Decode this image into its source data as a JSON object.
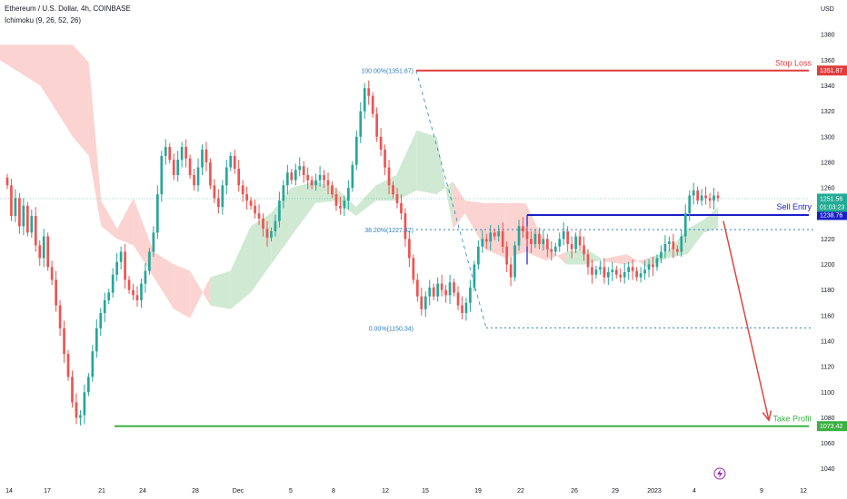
{
  "header": {
    "title": "Ethereum / U.S. Dollar, 4h, COINBASE",
    "indicator": "Ichimoku (9, 26, 52, 26)"
  },
  "colors": {
    "stop_loss": "#e03e3e",
    "sell_entry": "#1a1fc8",
    "take_profit": "#3cb043",
    "arrow": "#e0463f",
    "fib": "#2f7fc1",
    "candle_up": "#26a69a",
    "candle_down": "#ef5350",
    "cloud_bull": "#cfe9d3",
    "cloud_bear": "#fbd3d1",
    "price_tag": "#22ab94"
  },
  "chart_data": {
    "type": "candlestick",
    "symbol": "Ethereum / U.S. Dollar",
    "timeframe": "4h",
    "exchange": "COINBASE",
    "currency": "USD",
    "ylim": [
      1032,
      1400
    ],
    "y_ticks": [
      1040,
      1060,
      1080,
      1100,
      1120,
      1140,
      1160,
      1180,
      1200,
      1220,
      1240,
      1260,
      1280,
      1300,
      1320,
      1340,
      1360,
      1380
    ],
    "x_ticks": [
      "14",
      "17",
      "21",
      "24",
      "28",
      "Dec",
      "5",
      "8",
      "12",
      "15",
      "19",
      "22",
      "26",
      "29",
      "2023",
      "4",
      "9",
      "12"
    ],
    "levels": {
      "stop_loss": {
        "label": "Stop Loss",
        "price": 1351.87,
        "tag": "1351.87"
      },
      "sell_entry": {
        "label": "Sell Entry",
        "price": 1238.76,
        "tag": "1238.76"
      },
      "take_profit": {
        "label": "Take Profit",
        "price": 1073.42,
        "tag": "1073.42"
      }
    },
    "fibonacci": [
      {
        "label": "100.00%(1351.87)",
        "price": 1351.87
      },
      {
        "label": "38.20%(1227.32)",
        "price": 1227.32
      },
      {
        "label": "0.00%(1150.34)",
        "price": 1150.34
      }
    ],
    "current_price": {
      "price": 1251.56,
      "label": "1251.56",
      "countdown": "01:03:23"
    },
    "closes": [
      1262,
      1238,
      1252,
      1230,
      1246,
      1225,
      1238,
      1215,
      1205,
      1222,
      1198,
      1188,
      1168,
      1150,
      1130,
      1112,
      1092,
      1080,
      1082,
      1100,
      1112,
      1132,
      1150,
      1162,
      1172,
      1178,
      1192,
      1202,
      1210,
      1188,
      1180,
      1176,
      1172,
      1185,
      1195,
      1210,
      1225,
      1255,
      1285,
      1292,
      1282,
      1270,
      1282,
      1292,
      1283,
      1270,
      1262,
      1276,
      1290,
      1280,
      1262,
      1252,
      1245,
      1262,
      1276,
      1285,
      1275,
      1262,
      1255,
      1250,
      1246,
      1240,
      1236,
      1228,
      1221,
      1226,
      1234,
      1250,
      1262,
      1272,
      1266,
      1274,
      1277,
      1270,
      1266,
      1262,
      1266,
      1270,
      1266,
      1262,
      1255,
      1246,
      1244,
      1250,
      1260,
      1278,
      1300,
      1320,
      1338,
      1332,
      1318,
      1300,
      1290,
      1276,
      1262,
      1255,
      1248,
      1240,
      1220,
      1205,
      1188,
      1175,
      1165,
      1175,
      1182,
      1175,
      1185,
      1180,
      1176,
      1186,
      1178,
      1168,
      1162,
      1170,
      1182,
      1200,
      1214,
      1220,
      1218,
      1225,
      1222,
      1226,
      1214,
      1200,
      1190,
      1215,
      1230,
      1226,
      1220,
      1216,
      1224,
      1216,
      1220,
      1212,
      1210,
      1214,
      1220,
      1226,
      1216,
      1212,
      1222,
      1215,
      1208,
      1198,
      1192,
      1196,
      1198,
      1190,
      1194,
      1196,
      1192,
      1190,
      1194,
      1198,
      1195,
      1190,
      1193,
      1196,
      1200,
      1198,
      1205,
      1210,
      1216,
      1218,
      1212,
      1210,
      1222,
      1240,
      1254,
      1258,
      1250,
      1254,
      1252,
      1250,
      1254,
      1252
    ],
    "cloud": [
      {
        "x": 0.0,
        "span_a": 1360,
        "span_b": 1372
      },
      {
        "x": 0.05,
        "span_a": 1340,
        "span_b": 1372
      },
      {
        "x": 0.09,
        "span_a": 1300,
        "span_b": 1372
      },
      {
        "x": 0.11,
        "span_a": 1285,
        "span_b": 1358
      },
      {
        "x": 0.125,
        "span_a": 1230,
        "span_b": 1250
      },
      {
        "x": 0.145,
        "span_a": 1220,
        "span_b": 1228
      },
      {
        "x": 0.165,
        "span_a": 1215,
        "span_b": 1252
      },
      {
        "x": 0.19,
        "span_a": 1190,
        "span_b": 1210
      },
      {
        "x": 0.215,
        "span_a": 1165,
        "span_b": 1200
      },
      {
        "x": 0.235,
        "span_a": 1158,
        "span_b": 1195
      },
      {
        "x": 0.26,
        "span_a": 1190,
        "span_b": 1168
      },
      {
        "x": 0.285,
        "span_a": 1195,
        "span_b": 1165
      },
      {
        "x": 0.31,
        "span_a": 1230,
        "span_b": 1178
      },
      {
        "x": 0.335,
        "span_a": 1240,
        "span_b": 1200
      },
      {
        "x": 0.36,
        "span_a": 1260,
        "span_b": 1222
      },
      {
        "x": 0.39,
        "span_a": 1265,
        "span_b": 1248
      },
      {
        "x": 0.415,
        "span_a": 1260,
        "span_b": 1250
      },
      {
        "x": 0.44,
        "span_a": 1245,
        "span_b": 1238
      },
      {
        "x": 0.465,
        "span_a": 1262,
        "span_b": 1250
      },
      {
        "x": 0.49,
        "span_a": 1270,
        "span_b": 1250
      },
      {
        "x": 0.515,
        "span_a": 1305,
        "span_b": 1258
      },
      {
        "x": 0.54,
        "span_a": 1300,
        "span_b": 1255
      },
      {
        "x": 0.56,
        "span_a": 1228,
        "span_b": 1265
      },
      {
        "x": 0.575,
        "span_a": 1240,
        "span_b": 1250
      },
      {
        "x": 0.6,
        "span_a": 1212,
        "span_b": 1248
      },
      {
        "x": 0.625,
        "span_a": 1205,
        "span_b": 1248
      },
      {
        "x": 0.65,
        "span_a": 1210,
        "span_b": 1248
      },
      {
        "x": 0.675,
        "span_a": 1203,
        "span_b": 1215
      },
      {
        "x": 0.7,
        "span_a": 1210,
        "span_b": 1200
      },
      {
        "x": 0.725,
        "span_a": 1212,
        "span_b": 1200
      },
      {
        "x": 0.75,
        "span_a": 1202,
        "span_b": 1205
      },
      {
        "x": 0.775,
        "span_a": 1200,
        "span_b": 1208
      },
      {
        "x": 0.8,
        "span_a": 1205,
        "span_b": 1198
      },
      {
        "x": 0.825,
        "span_a": 1210,
        "span_b": 1205
      },
      {
        "x": 0.85,
        "span_a": 1228,
        "span_b": 1208
      },
      {
        "x": 0.87,
        "span_a": 1235,
        "span_b": 1225
      },
      {
        "x": 0.888,
        "span_a": 1245,
        "span_b": 1228
      }
    ]
  }
}
